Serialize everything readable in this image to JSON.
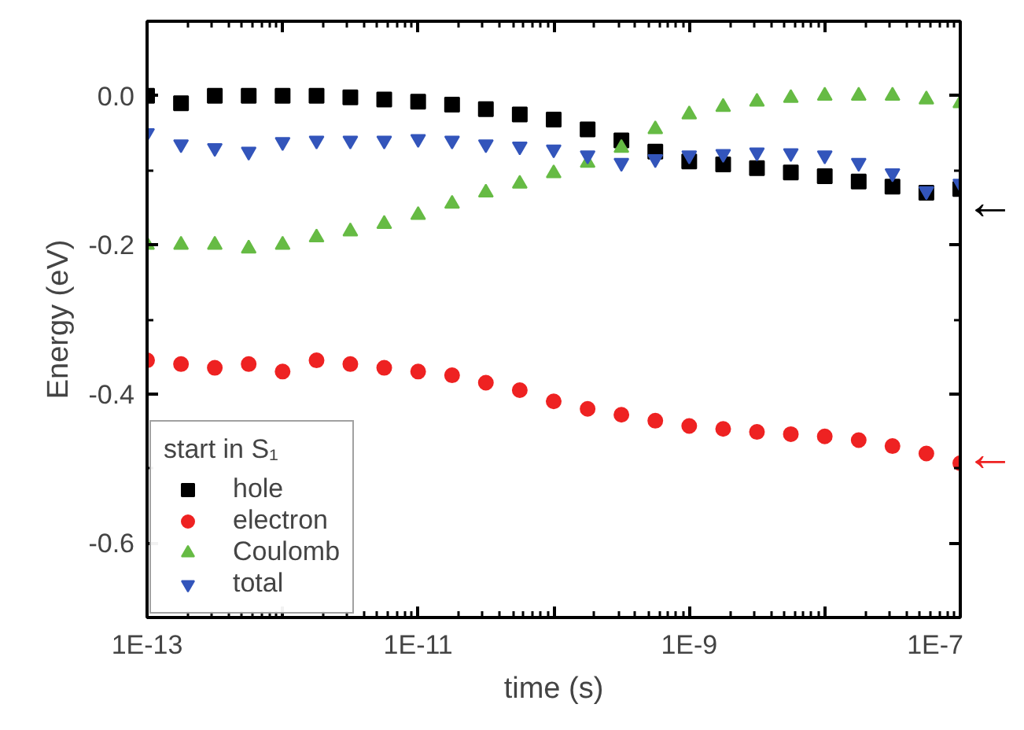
{
  "chart_data": {
    "type": "scatter",
    "xlabel": "time (s)",
    "ylabel": "Energy (eV)",
    "legend_title": "start in S₁",
    "legend": "bottom left",
    "log": "x",
    "grid": false,
    "x": [
      1e-13,
      1.78e-13,
      3.16e-13,
      5.62e-13,
      1e-12,
      1.78e-12,
      3.16e-12,
      5.62e-12,
      1e-11,
      1.78e-11,
      3.16e-11,
      5.62e-11,
      1e-10,
      1.78e-10,
      3.16e-10,
      5.62e-10,
      1e-09,
      1.78e-09,
      3.16e-09,
      5.62e-09,
      1e-08,
      1.78e-08,
      3.16e-08,
      5.62e-08,
      1e-07
    ],
    "series": [
      {
        "name": "hole",
        "color": "#000000",
        "marker": "square",
        "values": [
          0,
          -0.01,
          0,
          0,
          0,
          0,
          -0.002,
          -0.005,
          -0.008,
          -0.012,
          -0.018,
          -0.025,
          -0.032,
          -0.045,
          -0.06,
          -0.075,
          -0.088,
          -0.092,
          -0.097,
          -0.103,
          -0.108,
          -0.115,
          -0.122,
          -0.13,
          -0.125
        ]
      },
      {
        "name": "electron",
        "color": "#ee2222",
        "marker": "circle",
        "values": [
          -0.355,
          -0.36,
          -0.365,
          -0.36,
          -0.37,
          -0.355,
          -0.36,
          -0.365,
          -0.37,
          -0.375,
          -0.385,
          -0.395,
          -0.41,
          -0.42,
          -0.428,
          -0.436,
          -0.443,
          -0.447,
          -0.451,
          -0.454,
          -0.457,
          -0.462,
          -0.47,
          -0.48,
          -0.493
        ]
      },
      {
        "name": "Coulomb",
        "color": "#66bb44",
        "marker": "triangle",
        "values": [
          -0.2,
          -0.2,
          -0.2,
          -0.205,
          -0.2,
          -0.19,
          -0.182,
          -0.172,
          -0.16,
          -0.145,
          -0.13,
          -0.118,
          -0.104,
          -0.09,
          -0.07,
          -0.045,
          -0.025,
          -0.015,
          -0.008,
          -0.003,
          0.0,
          0.0,
          0.0,
          -0.005,
          -0.01
        ]
      },
      {
        "name": "total",
        "color": "#3355bb",
        "marker": "triangle_down",
        "values": [
          -0.05,
          -0.065,
          -0.07,
          -0.075,
          -0.062,
          -0.06,
          -0.06,
          -0.06,
          -0.058,
          -0.06,
          -0.065,
          -0.068,
          -0.072,
          -0.08,
          -0.09,
          -0.085,
          -0.08,
          -0.078,
          -0.076,
          -0.077,
          -0.08,
          -0.09,
          -0.104,
          -0.128,
          -0.118
        ]
      }
    ],
    "xlim": [
      1e-13,
      1e-07
    ],
    "xticks": [
      {
        "value": 1e-13,
        "label": "1E-13"
      },
      {
        "value": 1e-12,
        "label": null
      },
      {
        "value": 1e-11,
        "label": "1E-11"
      },
      {
        "value": 1e-10,
        "label": null
      },
      {
        "value": 1e-09,
        "label": "1E-9"
      },
      {
        "value": 1e-08,
        "label": null
      },
      {
        "value": 1e-07,
        "label": "1E-7"
      }
    ],
    "ylim": [
      -0.7,
      0.1
    ],
    "yticks": [
      {
        "value": 0.0,
        "label": "0.0"
      },
      {
        "value": -0.2,
        "label": "-0.2"
      },
      {
        "value": -0.4,
        "label": "-0.4"
      },
      {
        "value": -0.6,
        "label": "-0.6"
      }
    ],
    "annotations": [
      {
        "text": "←",
        "x": 1e-07,
        "y": -0.142
      },
      {
        "text": "←",
        "x": 1e-07,
        "y": -0.479
      }
    ]
  }
}
